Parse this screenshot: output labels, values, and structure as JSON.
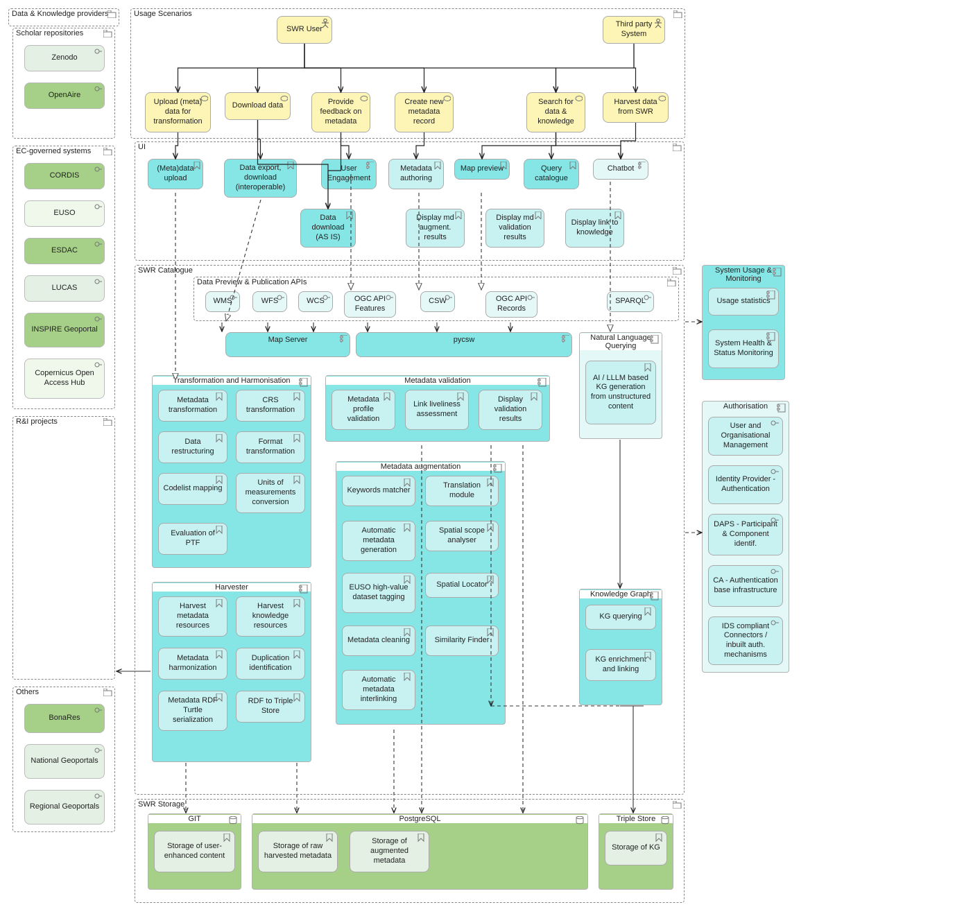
{
  "colors": {
    "yellow": "#fdf5b5",
    "cyan": "#86e5e5",
    "lightCyan": "#c8f2f2",
    "lighterCyan": "#e5f8f8",
    "green": "#a6d087",
    "lightGreen": "#e3f0e3",
    "paleGreen": "#f0f7eb",
    "border": "#b3b1b1",
    "dashBorder": "#888888",
    "text": "#222222"
  },
  "providers": {
    "title": "Data & Knowledge providers",
    "scholar": {
      "title": "Scholar repositories",
      "items": [
        "Zenodo",
        "OpenAire"
      ]
    },
    "ec": {
      "title": "EC-governed systems",
      "items": [
        "CORDIS",
        "EUSO",
        "ESDAC",
        "LUCAS",
        "INSPIRE Geoportal",
        "Copernicus Open Access Hub"
      ]
    },
    "ri": {
      "title": "R&I projects"
    },
    "others": {
      "title": "Others",
      "items": [
        "BonaRes",
        "National Geoportals",
        "Regional Geoportals"
      ]
    }
  },
  "usageScenarios": {
    "title": "Usage Scenarios",
    "actors": {
      "user": "SWR User",
      "thirdParty": "Third party System"
    },
    "useCases": {
      "upload": "Upload (meta) data for transformation",
      "download": "Download data",
      "feedback": "Provide feedback on metadata",
      "create": "Create new metadata record",
      "search": "Search for data & knowledge",
      "harvest": "Harvest data from SWR"
    }
  },
  "ui": {
    "title": "UI",
    "metaUpload": "(Meta)data upload",
    "dataExport": "Data export, download (interoperable)",
    "userEng": "User Engagement",
    "metaAuth": "Metadata authoring",
    "mapPrev": "Map preview",
    "queryCat": "Query catalogue",
    "chatbot": "Chatbot",
    "dataDownload": "Data download (AS IS)",
    "dispAugment": "Display md augment. results",
    "dispVal": "Display md validation results",
    "dispLink": "Display link to knowledge"
  },
  "swrCatalogue": {
    "title": "SWR Catalogue",
    "apis": {
      "title": "Data Preview & Publication APIs",
      "wms": "WMS",
      "wfs": "WFS",
      "wcs": "WCS",
      "ogcFeat": "OGC API Features",
      "csw": "CSW",
      "ogcRec": "OGC API Records",
      "sparql": "SPARQL"
    },
    "mapServer": "Map Server",
    "pycsw": "pycsw",
    "nlq": {
      "title": "Natural Language Querying",
      "ai": "AI / LLLM based KG generation from unstructured content"
    },
    "transform": {
      "title": "Transformation and Harmonisation",
      "items": [
        "Metadata transformation",
        "CRS transformation",
        "Data restructuring",
        "Format transformation",
        "Codelist mapping",
        "Units of measurements conversion",
        "Evaluation of PTF"
      ]
    },
    "validation": {
      "title": "Metadata validation",
      "items": [
        "Metadata profile validation",
        "Link liveliness assessment",
        "Display validation results"
      ]
    },
    "augmentation": {
      "title": "Metadata augmentation",
      "items": [
        "Keywords matcher",
        "Translation module",
        "Automatic metadata generation",
        "Spatial scope analyser",
        "EUSO high-value dataset tagging",
        "Spatial Locator",
        "Metadata cleaning",
        "Similarity Finder",
        "Automatic metadata interlinking"
      ]
    },
    "harvester": {
      "title": "Harvester",
      "items": [
        "Harvest metadata resources",
        "Harvest knowledge resources",
        "Metadata harmonization",
        "Duplication identification",
        "Metadata RDF Turtle serialization",
        "RDF to Triple Store"
      ]
    },
    "kg": {
      "title": "Knowledge Graph",
      "querying": "KG querying",
      "enrich": "KG enrichment and linking"
    }
  },
  "storage": {
    "title": "SWR Storage",
    "git": {
      "title": "GIT",
      "item": "Storage of user-enhanced content"
    },
    "pg": {
      "title": "PostgreSQL",
      "raw": "Storage of raw harvested metadata",
      "aug": "Storage of augmented metadata"
    },
    "ts": {
      "title": "Triple Store",
      "item": "Storage of KG"
    }
  },
  "monitoring": {
    "title": "System Usage & Monitoring",
    "usage": "Usage statistics",
    "health": "System Health & Status Monitoring"
  },
  "auth": {
    "title": "Authorisation",
    "items": [
      "User and Organisational Management",
      "Identity Provider - Authentication",
      "DAPS - Participant & Component identif.",
      "CA - Authentication base infrastructure",
      "IDS compliant Connectors / inbuilt auth. mechanisms"
    ]
  },
  "edges": [
    {
      "from": "actor-user",
      "to": "uc-upload",
      "dashed": false
    },
    {
      "from": "actor-user",
      "to": "uc-download",
      "dashed": false
    },
    {
      "from": "actor-user",
      "to": "uc-feedback",
      "dashed": false
    },
    {
      "from": "actor-user",
      "to": "uc-create",
      "dashed": false
    },
    {
      "from": "actor-user",
      "to": "uc-search",
      "dashed": false
    },
    {
      "from": "actor-tp",
      "to": "uc-search",
      "dashed": false
    },
    {
      "from": "actor-tp",
      "to": "uc-harvest",
      "dashed": false
    },
    {
      "from": "uc-upload",
      "to": "ui-metaUpload",
      "dashed": false
    },
    {
      "from": "uc-download",
      "to": "ui-dataExport",
      "dashed": false
    },
    {
      "from": "uc-download",
      "to": "ui-dataDownload",
      "dashed": false
    },
    {
      "from": "uc-feedback",
      "to": "ui-userEng",
      "dashed": false
    },
    {
      "from": "uc-feedback",
      "to": "ui-dataDownload",
      "dashed": false
    },
    {
      "from": "uc-create",
      "to": "ui-metaAuth",
      "dashed": false
    },
    {
      "from": "uc-search",
      "to": "ui-mapPrev",
      "dashed": false
    },
    {
      "from": "uc-search",
      "to": "ui-queryCat",
      "dashed": false
    },
    {
      "from": "uc-search",
      "to": "ui-chatbot",
      "dashed": false
    },
    {
      "from": "uc-harvest",
      "to": "ui-chatbot",
      "dashed": false
    }
  ]
}
